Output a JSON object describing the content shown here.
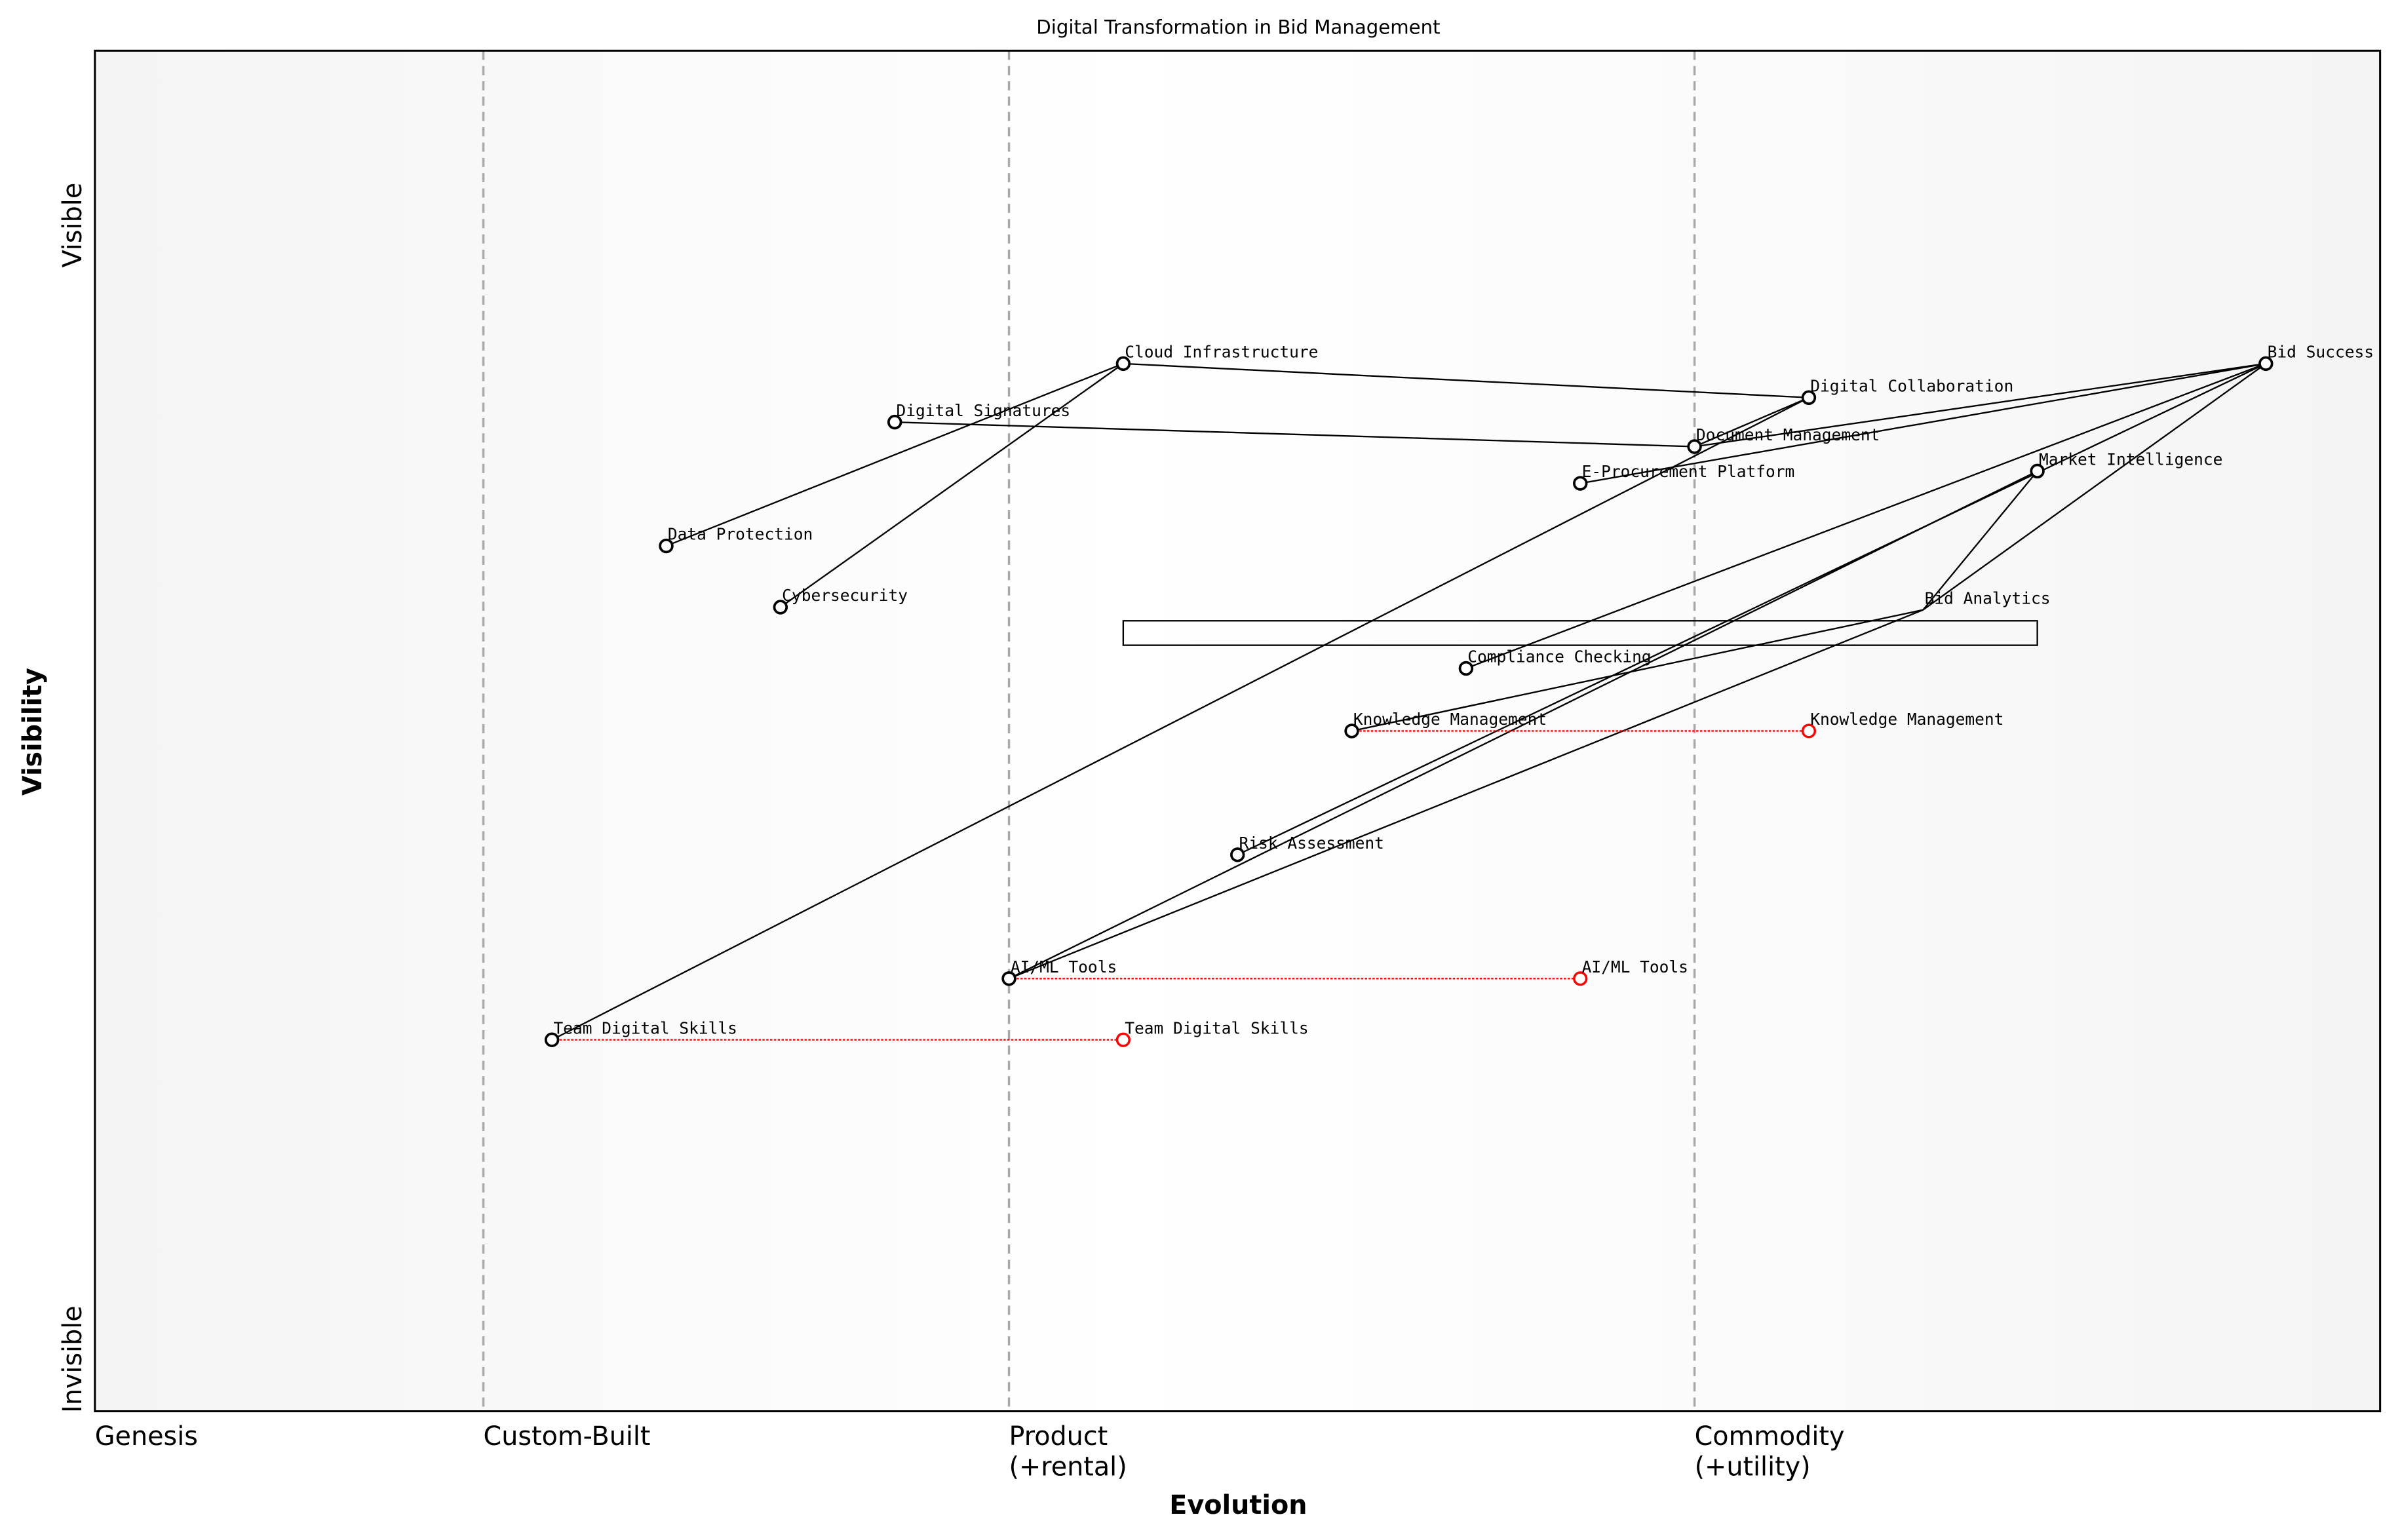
{
  "chart_data": {
    "type": "scatter",
    "title": "Digital Transformation in Bid Management",
    "xlabel": "Evolution",
    "ylabel": "Visibility",
    "y_top_label": "Visible",
    "y_bottom_label": "Invisible",
    "xlim": [
      0,
      1
    ],
    "ylim": [
      0,
      1
    ],
    "grid": false,
    "stages": [
      {
        "label": "Genesis",
        "sub": "",
        "x": 0.0
      },
      {
        "label": "Custom-Built",
        "sub": "",
        "x": 0.17
      },
      {
        "label": "Product",
        "sub": "(+rental)",
        "x": 0.4
      },
      {
        "label": "Commodity",
        "sub": "(+utility)",
        "x": 0.7
      }
    ],
    "components": [
      {
        "name": "Bid Success",
        "x": 0.95,
        "y": 0.77
      },
      {
        "name": "Cloud Infrastructure",
        "x": 0.45,
        "y": 0.77
      },
      {
        "name": "Digital Collaboration",
        "x": 0.75,
        "y": 0.745
      },
      {
        "name": "Digital Signatures",
        "x": 0.35,
        "y": 0.727
      },
      {
        "name": "Document Management",
        "x": 0.7,
        "y": 0.709
      },
      {
        "name": "Market Intelligence",
        "x": 0.85,
        "y": 0.691
      },
      {
        "name": "E-Procurement Platform",
        "x": 0.65,
        "y": 0.682
      },
      {
        "name": "Data Protection",
        "x": 0.25,
        "y": 0.636
      },
      {
        "name": "Cybersecurity",
        "x": 0.3,
        "y": 0.591
      },
      {
        "name": "Bid Analytics",
        "x": 0.8,
        "y": 0.589,
        "marker": false
      },
      {
        "name": "Compliance Checking",
        "x": 0.6,
        "y": 0.546
      },
      {
        "name": "Knowledge Management",
        "x": 0.55,
        "y": 0.5
      },
      {
        "name": "Risk Assessment",
        "x": 0.5,
        "y": 0.409
      },
      {
        "name": "AI/ML Tools",
        "x": 0.4,
        "y": 0.318
      },
      {
        "name": "Team Digital Skills",
        "x": 0.2,
        "y": 0.273
      }
    ],
    "links": [
      [
        "Cloud Infrastructure",
        "Digital Collaboration"
      ],
      [
        "Cloud Infrastructure",
        "Data Protection"
      ],
      [
        "Cloud Infrastructure",
        "Cybersecurity"
      ],
      [
        "Digital Signatures",
        "Document Management"
      ],
      [
        "Document Management",
        "Digital Collaboration"
      ],
      [
        "Team Digital Skills",
        "Digital Collaboration"
      ],
      [
        "Bid Success",
        "Document Management"
      ],
      [
        "Bid Success",
        "E-Procurement Platform"
      ],
      [
        "Bid Success",
        "Compliance Checking"
      ],
      [
        "Bid Success",
        "Risk Assessment"
      ],
      [
        "Bid Success",
        "Bid Analytics"
      ],
      [
        "Market Intelligence",
        "Bid Analytics"
      ],
      [
        "Market Intelligence",
        "AI/ML Tools"
      ],
      [
        "Bid Analytics",
        "AI/ML Tools"
      ],
      [
        "Bid Analytics",
        "Knowledge Management"
      ]
    ],
    "evolutions": [
      {
        "name": "Knowledge Management",
        "from": 0.55,
        "to": 0.75,
        "y": 0.5
      },
      {
        "name": "AI/ML Tools",
        "from": 0.4,
        "to": 0.65,
        "y": 0.318
      },
      {
        "name": "Team Digital Skills",
        "from": 0.2,
        "to": 0.45,
        "y": 0.273
      }
    ],
    "annotation_box": {
      "x": [
        0.45,
        0.85
      ],
      "y": [
        0.572,
        0.59
      ]
    },
    "colors": {
      "component": "#000000",
      "evolution": "#ff0000",
      "stage_line": "#aaaaaa"
    }
  }
}
